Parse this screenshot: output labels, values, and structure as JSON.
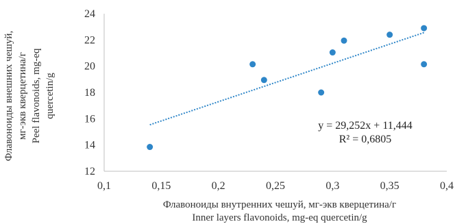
{
  "chart_data": {
    "type": "scatter",
    "title": "",
    "xlabel_lines": [
      "Флавоноиды внутренних чешуй, мг-экв кверцетина/г",
      "Inner layers flavonoids, mg-eq quercetin/g"
    ],
    "ylabel_lines": [
      "Флавоноиды внешних чешуй,",
      "мг-экв кверцетина/г",
      "Peel flavonoids, mg-eq",
      "quercetin/g"
    ],
    "xlim": [
      0.1,
      0.4
    ],
    "ylim": [
      12,
      24
    ],
    "xticks": [
      0.1,
      0.15,
      0.2,
      0.25,
      0.3,
      0.35,
      0.4
    ],
    "xtick_labels": [
      "0,1",
      "0,15",
      "0,2",
      "0,25",
      "0,3",
      "0,35",
      "0,4"
    ],
    "yticks": [
      12,
      14,
      16,
      18,
      20,
      22,
      24
    ],
    "ytick_labels": [
      "12",
      "14",
      "16",
      "18",
      "20",
      "22",
      "24"
    ],
    "grid": false,
    "series": [
      {
        "x": [
          0.14,
          0.23,
          0.24,
          0.29,
          0.3,
          0.31,
          0.35,
          0.38,
          0.38
        ],
        "y": [
          13.85,
          20.15,
          18.95,
          18.0,
          21.05,
          21.95,
          22.4,
          22.9,
          20.15
        ],
        "color": "#2e86c8"
      }
    ],
    "trendline": {
      "type": "linear",
      "slope": 29.252,
      "intercept": 11.444,
      "x_range": [
        0.14,
        0.38
      ],
      "color": "#2e86c8",
      "style": "dotted"
    },
    "annotations": [
      "y = 29,252x + 11,444",
      "R² = 0,6805"
    ]
  }
}
